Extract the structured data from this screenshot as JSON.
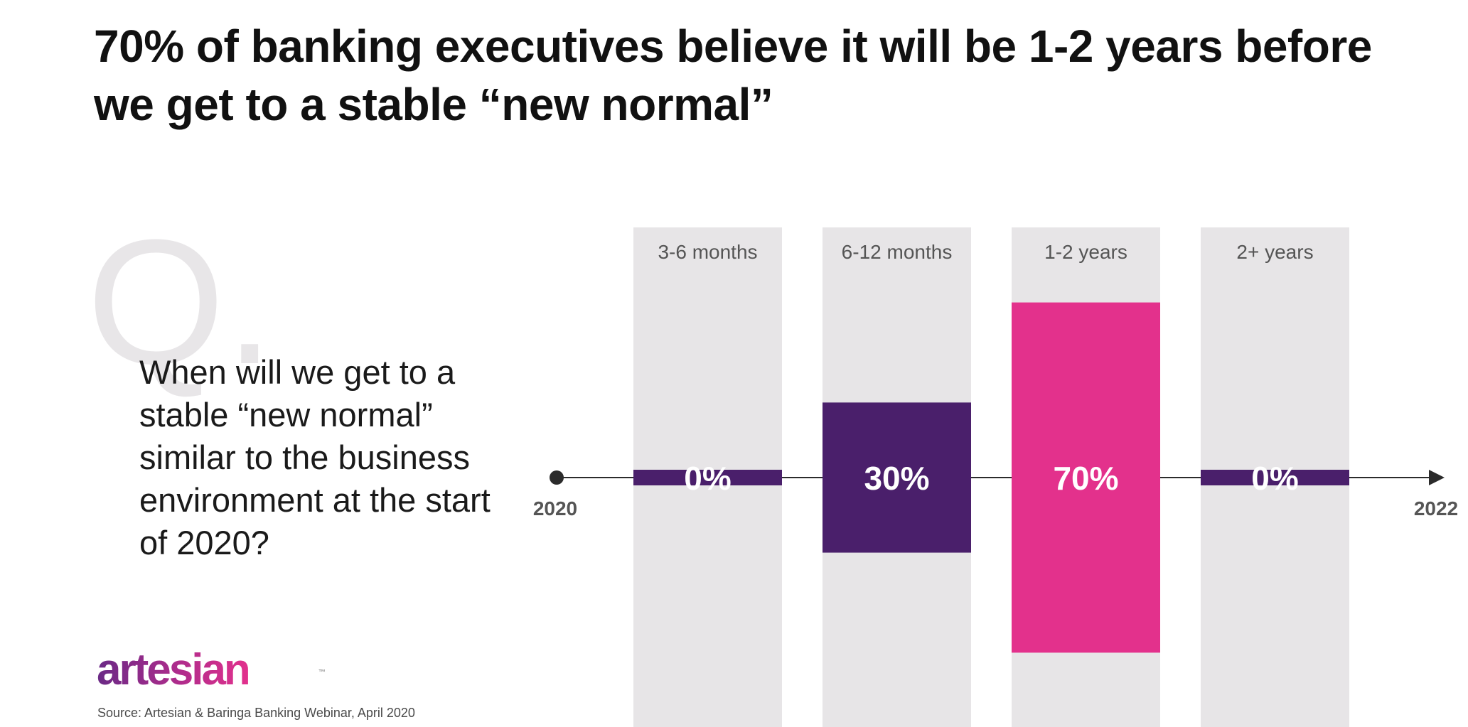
{
  "title": "70% of banking executives believe it will be 1-2 years before we get to a stable “new normal”",
  "q_letter": "Q.",
  "question": "When will we get to a stable “new normal” similar to the business environment at the start of 2020?",
  "logo": "artesian",
  "logo_tm": "™",
  "source": "Source: Artesian & Baringa Banking Webinar, April 2020",
  "chart_data": {
    "type": "bar",
    "categories": [
      "3-6 months",
      "6-12 months",
      "1-2 years",
      "2+ years"
    ],
    "values": [
      0,
      30,
      70,
      0
    ],
    "value_labels": [
      "0%",
      "30%",
      "70%",
      "0%"
    ],
    "ylim": [
      0,
      100
    ],
    "timeline_start": "2020",
    "timeline_end": "2022",
    "colors": {
      "background_column": "#e7e5e7",
      "bar_default": "#4a1f6b",
      "bar_highlight": "#e3318c",
      "axis": "#2b2b2b"
    },
    "highlight_index": 2
  }
}
